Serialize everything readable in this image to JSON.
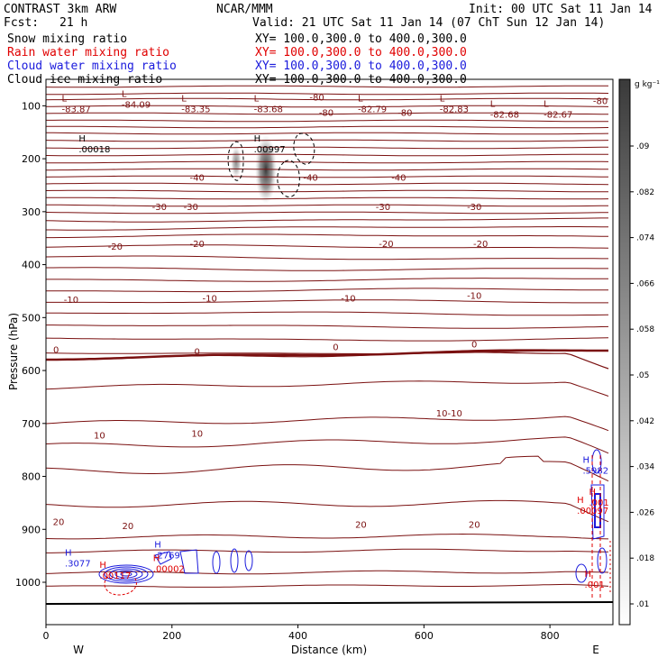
{
  "header": {
    "model": "CONTRAST  3km ARW",
    "org": "NCAR/MMM",
    "init": "Init: 00 UTC Sat 11 Jan 14",
    "fcst_label": "Fcst:",
    "fcst_value": "21 h",
    "valid": "Valid: 21 UTC Sat 11 Jan 14 (07 ChT Sun 12 Jan 14)"
  },
  "fields": [
    {
      "name": "Snow mixing ratio",
      "xy": "XY= 100.0,300.0 to 400.0,300.0",
      "color": "#000000"
    },
    {
      "name": "Rain water mixing ratio",
      "xy": "XY= 100.0,300.0 to 400.0,300.0",
      "color": "#e00000"
    },
    {
      "name": "Cloud water mixing ratio",
      "xy": "XY= 100.0,300.0 to 400.0,300.0",
      "color": "#1a1adc"
    },
    {
      "name": "Cloud ice mixing ratio",
      "xy": "XY= 100.0,300.0 to 400.0,300.0",
      "color": "#000000"
    }
  ],
  "chart_data": {
    "type": "contour",
    "xlabel": "Distance (km)",
    "ylabel": "Pressure (hPa)",
    "xlim": [
      0,
      900
    ],
    "ylim": [
      1080,
      50
    ],
    "xticks": [
      0,
      200,
      400,
      600,
      800
    ],
    "yticks": [
      100,
      200,
      300,
      400,
      500,
      600,
      700,
      800,
      900,
      1000
    ],
    "ends": {
      "left": "W",
      "right": "E"
    },
    "colorbar": {
      "unit": "g kg⁻¹",
      "ticks": [
        ".01",
        ".018",
        ".026",
        ".034",
        ".042",
        ".05",
        ".058",
        ".066",
        ".074",
        ".082",
        ".09"
      ],
      "color_low": "#ffffff",
      "color_high": "#3a3a3a"
    },
    "temperature_labels": [
      {
        "text": "-80",
        "x": 430,
        "p": 83
      },
      {
        "text": "-80",
        "x": 445,
        "p": 112
      },
      {
        "text": "-80",
        "x": 570,
        "p": 112
      },
      {
        "text": "-80",
        "x": 880,
        "p": 90
      },
      {
        "text": "-40",
        "x": 240,
        "p": 235
      },
      {
        "text": "-40",
        "x": 420,
        "p": 235
      },
      {
        "text": "-40",
        "x": 560,
        "p": 235
      },
      {
        "text": "-30",
        "x": 180,
        "p": 290
      },
      {
        "text": "-30",
        "x": 230,
        "p": 290
      },
      {
        "text": "-30",
        "x": 535,
        "p": 290
      },
      {
        "text": "-30",
        "x": 680,
        "p": 290
      },
      {
        "text": "-20",
        "x": 110,
        "p": 365
      },
      {
        "text": "-20",
        "x": 240,
        "p": 360
      },
      {
        "text": "-20",
        "x": 540,
        "p": 360
      },
      {
        "text": "-20",
        "x": 690,
        "p": 360
      },
      {
        "text": "-10",
        "x": 40,
        "p": 465
      },
      {
        "text": "-10",
        "x": 260,
        "p": 463
      },
      {
        "text": "-10",
        "x": 480,
        "p": 463
      },
      {
        "text": "-10",
        "x": 680,
        "p": 458
      },
      {
        "text": "0",
        "x": 16,
        "p": 560
      },
      {
        "text": "0",
        "x": 240,
        "p": 563
      },
      {
        "text": "0",
        "x": 460,
        "p": 555
      },
      {
        "text": "0",
        "x": 680,
        "p": 550
      },
      {
        "text": "10-10",
        "x": 640,
        "p": 680
      },
      {
        "text": "10",
        "x": 85,
        "p": 722
      },
      {
        "text": "10",
        "x": 240,
        "p": 718
      },
      {
        "text": "20",
        "x": 20,
        "p": 885
      },
      {
        "text": "20",
        "x": 130,
        "p": 893
      },
      {
        "text": "20",
        "x": 500,
        "p": 890
      },
      {
        "text": "20",
        "x": 680,
        "p": 890
      }
    ],
    "extrema": [
      {
        "kind": "L",
        "value": "-83.87",
        "x": 25,
        "p": 102
      },
      {
        "kind": "L",
        "value": "-84.09",
        "x": 120,
        "p": 93
      },
      {
        "kind": "L",
        "value": "-83.35",
        "x": 215,
        "p": 102
      },
      {
        "kind": "L",
        "value": "-83.68",
        "x": 330,
        "p": 102
      },
      {
        "kind": "L",
        "value": "-82.79",
        "x": 495,
        "p": 102
      },
      {
        "kind": "L",
        "value": "-82.83",
        "x": 625,
        "p": 102
      },
      {
        "kind": "L",
        "value": "-82.68",
        "x": 705,
        "p": 112
      },
      {
        "kind": "L",
        "value": "-82.67",
        "x": 790,
        "p": 112
      },
      {
        "kind": "H",
        "value": ".00018",
        "x": 52,
        "p": 178
      },
      {
        "kind": "H",
        "value": ".00997",
        "x": 330,
        "p": 178
      },
      {
        "kind": "H",
        "value": ".3077",
        "x": 30,
        "p": 960
      },
      {
        "kind": "H",
        "value": ".2769",
        "x": 172,
        "p": 945
      },
      {
        "kind": "H",
        "value": ".00117",
        "x": 85,
        "p": 983
      },
      {
        "kind": "H",
        "value": ".00002",
        "x": 170,
        "p": 970
      },
      {
        "kind": "H",
        "value": ".5982",
        "x": 852,
        "p": 785
      },
      {
        "kind": "H",
        "value": ".001",
        "x": 862,
        "p": 845
      },
      {
        "kind": "H",
        "value": ".00097",
        "x": 843,
        "p": 860
      },
      {
        "kind": "H",
        "value": ".001",
        "x": 855,
        "p": 1000
      }
    ]
  }
}
